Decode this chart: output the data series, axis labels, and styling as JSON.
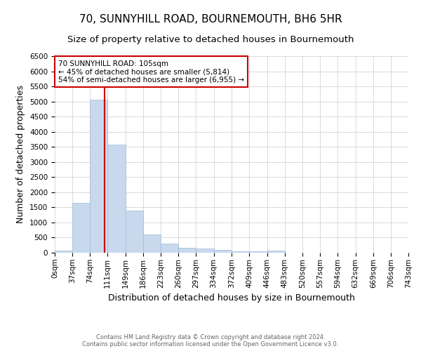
{
  "title": "70, SUNNYHILL ROAD, BOURNEMOUTH, BH6 5HR",
  "subtitle": "Size of property relative to detached houses in Bournemouth",
  "xlabel": "Distribution of detached houses by size in Bournemouth",
  "ylabel": "Number of detached properties",
  "bin_edges": [
    0,
    37,
    74,
    111,
    149,
    186,
    223,
    260,
    297,
    334,
    372,
    409,
    446,
    483,
    520,
    557,
    594,
    632,
    669,
    706,
    743
  ],
  "bar_heights": [
    75,
    1650,
    5070,
    3580,
    1400,
    610,
    300,
    155,
    145,
    100,
    45,
    35,
    60,
    0,
    0,
    0,
    0,
    0,
    0,
    0
  ],
  "bar_color": "#c8d9ee",
  "bar_edge_color": "#a0b8d8",
  "property_line_x": 105,
  "property_line_color": "#cc0000",
  "annotation_text": "70 SUNNYHILL ROAD: 105sqm\n← 45% of detached houses are smaller (5,814)\n54% of semi-detached houses are larger (6,955) →",
  "annotation_box_color": "#ffffff",
  "annotation_box_edge_color": "#cc0000",
  "ylim": [
    0,
    6500
  ],
  "yticks": [
    0,
    500,
    1000,
    1500,
    2000,
    2500,
    3000,
    3500,
    4000,
    4500,
    5000,
    5500,
    6000,
    6500
  ],
  "grid_color": "#cccccc",
  "background_color": "#ffffff",
  "footer_line1": "Contains HM Land Registry data © Crown copyright and database right 2024.",
  "footer_line2": "Contains public sector information licensed under the Open Government Licence v3.0.",
  "title_fontsize": 11,
  "subtitle_fontsize": 9.5,
  "tick_label_fontsize": 7.5,
  "axis_label_fontsize": 9,
  "annotation_fontsize": 7.5,
  "footer_fontsize": 6.0
}
